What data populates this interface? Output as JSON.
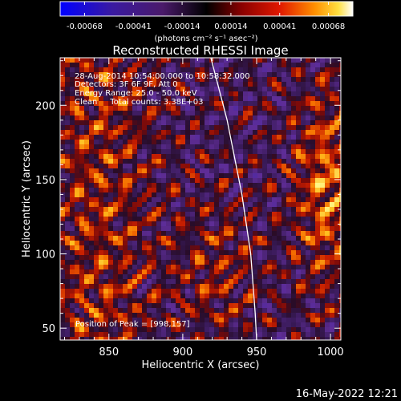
{
  "chart_data": {
    "type": "heatmap",
    "title": "Reconstructed RHESSI Image",
    "xlabel": "Heliocentric X (arcsec)",
    "ylabel": "Heliocentric Y (arcsec)",
    "xlim": [
      817,
      1007
    ],
    "ylim": [
      42,
      232
    ],
    "x_ticks": [
      850,
      900,
      950,
      1000
    ],
    "y_ticks": [
      50,
      100,
      150,
      200
    ],
    "colorbar": {
      "ticks": [
        "-0.00068",
        "-0.00041",
        "-0.00014",
        "0.00014",
        "0.00041",
        "0.00068"
      ],
      "unit_label": "(photons cm⁻² s⁻¹ asec⁻²)",
      "range": [
        -0.00068,
        0.00068
      ]
    },
    "info": {
      "line1": "28-Aug-2014 10:54:00.000 to 10:58:32.000",
      "line2": "Detectors: 3F 6F 9F, Att 0",
      "line3": "Energy Range: 25.0 - 50.0 keV",
      "line4": "Clean     Total counts: 3.38E+03"
    },
    "peak_label": "Position of Peak = [998,157]",
    "peak": [
      998,
      157
    ],
    "limb_curve": [
      [
        919,
        232
      ],
      [
        930,
        190
      ],
      [
        940,
        140
      ],
      [
        946,
        100
      ],
      [
        949,
        60
      ],
      [
        950,
        42
      ]
    ],
    "footer_timestamp": "16-May-2022 12:21"
  }
}
